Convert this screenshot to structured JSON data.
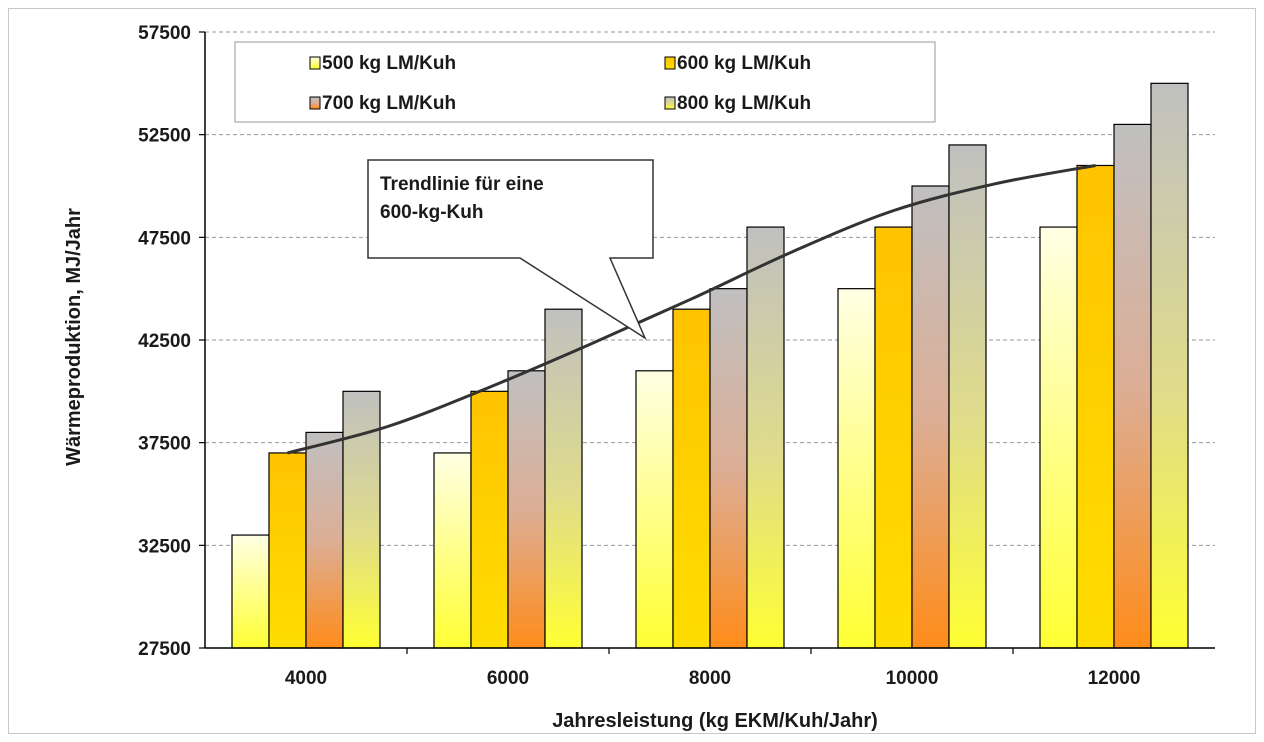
{
  "chart_data": {
    "type": "bar",
    "title": "",
    "xlabel": "Jahresleistung (kg EKM/Kuh/Jahr)",
    "ylabel": "Wärmeproduktion,  MJ/Jahr",
    "ylim": [
      27500,
      57500
    ],
    "yticks": [
      27500,
      32500,
      37500,
      42500,
      47500,
      52500,
      57500
    ],
    "categories": [
      "4000",
      "6000",
      "8000",
      "10000",
      "12000"
    ],
    "grid": "horizontal dashed",
    "legend_position": "top-left",
    "series": [
      {
        "name": "500 kg LM/Kuh",
        "values": [
          33000,
          37000,
          41000,
          45000,
          48000
        ],
        "color_top": "#ffffe4",
        "color_bottom": "#ffff33"
      },
      {
        "name": "600 kg LM/Kuh",
        "values": [
          37000,
          40000,
          44000,
          48000,
          51000
        ],
        "color_top": "#ffc400",
        "color_bottom": "#ffdd00"
      },
      {
        "name": "700 kg LM/Kuh",
        "values": [
          38000,
          41000,
          45000,
          50000,
          53000
        ],
        "color_top": "#c0c0c0",
        "color_bottom": "#ff8c1a"
      },
      {
        "name": "800 kg LM/Kuh",
        "values": [
          40000,
          44000,
          48000,
          52000,
          55000
        ],
        "color_top": "#c0c0c0",
        "color_bottom": "#ffff33"
      }
    ],
    "trendline": {
      "name": "Trendlinie für eine 600-kg-Kuh",
      "x": [
        4000,
        5000,
        6000,
        7000,
        8000,
        9000,
        10000,
        11000,
        12000
      ],
      "y": [
        37000,
        38300,
        40200,
        42300,
        44500,
        46800,
        48800,
        50100,
        51000
      ]
    },
    "annotation": {
      "lines": [
        "Trendlinie für eine",
        "600-kg-Kuh"
      ]
    }
  }
}
